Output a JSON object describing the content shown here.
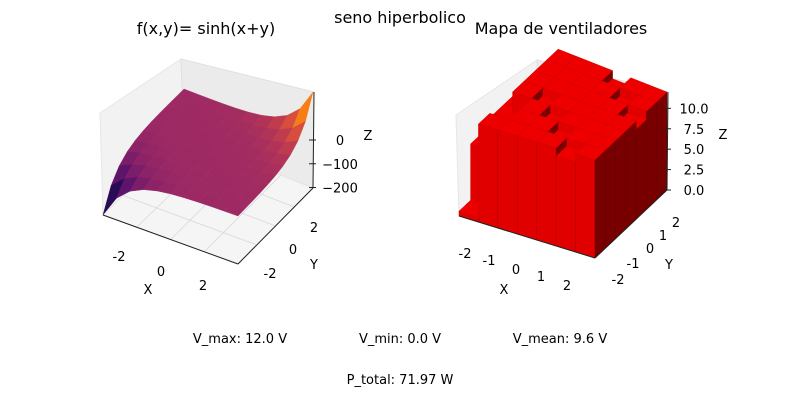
{
  "figure": {
    "suptitle": "seno hiperbolico",
    "stats": {
      "vmax": "V_max: 12.0 V",
      "vmin": "V_min: 0.0 V",
      "vmean": "V_mean: 9.6 V",
      "ptotal": "P_total: 71.97 W"
    }
  },
  "chart_data": [
    {
      "type": "surface",
      "title": "f(x,y)= sinh(x+y)",
      "xlabel": "X",
      "ylabel": "Y",
      "zlabel": "Z",
      "function": "sinh(x+y)",
      "xlim": [
        -3,
        3
      ],
      "ylim": [
        -3,
        3
      ],
      "zlim": [
        -202,
        202
      ],
      "grid_size": 10,
      "x_ticks": [
        "-2",
        "0",
        "2"
      ],
      "y_ticks": [
        "-2",
        "0",
        "2"
      ],
      "z_ticks": [
        "0",
        "−100",
        "−200"
      ],
      "z_tick_values": [
        0,
        -100,
        -200
      ],
      "colormap": "inferno",
      "grid": true
    },
    {
      "type": "bar3d",
      "title": "Mapa de ventiladores",
      "xlabel": "X",
      "ylabel": "Y",
      "zlabel": "Z",
      "x_ticks": [
        "-2",
        "-1",
        "0",
        "1",
        "2"
      ],
      "y_ticks": [
        "-2",
        "-1",
        "0",
        "1",
        "2"
      ],
      "z_ticks": [
        "0.0",
        "2.5",
        "5.0",
        "7.5",
        "10.0"
      ],
      "z_tick_values": [
        0,
        2.5,
        5,
        7.5,
        10
      ],
      "zlim": [
        0,
        12
      ],
      "bar_color": "#ee0000",
      "grid": true
    }
  ]
}
